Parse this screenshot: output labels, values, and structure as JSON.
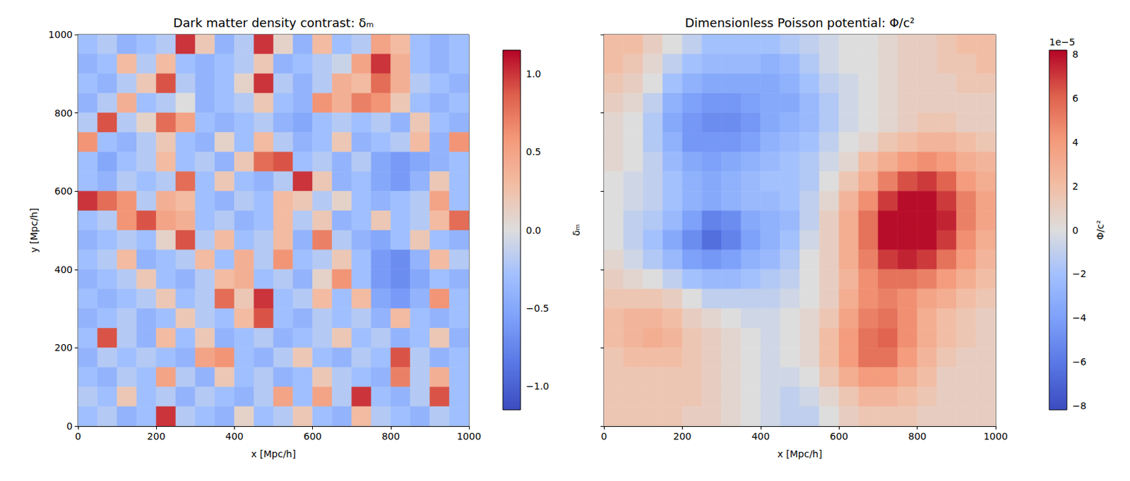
{
  "chart_data": [
    {
      "type": "heatmap",
      "title": "Dark matter density contrast: δₘ",
      "xlabel": "x [Mpc/h]",
      "ylabel": "y [Mpc/h]",
      "xlim": [
        0,
        1000
      ],
      "ylim": [
        0,
        1000
      ],
      "xticks": [
        0,
        200,
        400,
        600,
        800,
        1000
      ],
      "yticks": [
        0,
        200,
        400,
        600,
        800,
        1000
      ],
      "grid": false,
      "color": "coolwarm",
      "x": [
        25,
        75,
        125,
        175,
        225,
        275,
        325,
        375,
        425,
        475,
        525,
        575,
        625,
        675,
        725,
        775,
        825,
        875,
        925,
        975
      ],
      "y": [
        975,
        925,
        875,
        825,
        775,
        725,
        675,
        625,
        575,
        525,
        475,
        425,
        375,
        325,
        275,
        225,
        175,
        125,
        75,
        25
      ],
      "values": [
        [
          -0.3,
          -0.2,
          -0.4,
          -0.3,
          -0.2,
          1.0,
          0.2,
          -0.4,
          -0.2,
          1.0,
          0.1,
          -0.4,
          0.3,
          -0.3,
          -0.2,
          0.5,
          0.3,
          -0.3,
          -0.4,
          -0.3
        ],
        [
          -0.4,
          -0.3,
          0.3,
          -0.2,
          0.3,
          -0.3,
          -0.4,
          -0.3,
          -0.2,
          0.2,
          -0.4,
          -0.3,
          -0.2,
          -0.1,
          0.5,
          1.0,
          0.4,
          -0.3,
          -0.4,
          -0.3
        ],
        [
          -0.3,
          -0.4,
          -0.2,
          0.2,
          0.9,
          -0.2,
          -0.4,
          -0.3,
          0.1,
          1.0,
          -0.2,
          -0.4,
          -0.2,
          0.4,
          0.3,
          0.8,
          0.4,
          -0.2,
          -0.3,
          -0.4
        ],
        [
          -0.4,
          -0.2,
          0.4,
          -0.3,
          -0.2,
          0.0,
          -0.4,
          -0.3,
          -0.2,
          0.2,
          -0.3,
          -0.4,
          0.6,
          0.4,
          0.7,
          0.6,
          0.2,
          -0.3,
          -0.4,
          -0.3
        ],
        [
          -0.2,
          0.9,
          -0.2,
          0.1,
          0.8,
          0.5,
          -0.3,
          -0.4,
          -0.3,
          -0.2,
          -0.4,
          -0.5,
          -0.3,
          -0.2,
          -0.3,
          -0.2,
          -0.4,
          0.2,
          -0.3,
          -0.4
        ],
        [
          0.6,
          -0.3,
          -0.4,
          -0.2,
          0.2,
          -0.3,
          -0.4,
          0.1,
          -0.3,
          0.3,
          -0.2,
          -0.4,
          -0.3,
          0.2,
          -0.4,
          -0.3,
          -0.2,
          0.3,
          -0.4,
          0.6
        ],
        [
          -0.3,
          -0.5,
          -0.3,
          -0.2,
          0.3,
          -0.3,
          -0.2,
          -0.4,
          0.2,
          0.8,
          0.9,
          -0.3,
          -0.2,
          -0.4,
          -0.2,
          -0.5,
          -0.6,
          -0.5,
          -0.4,
          -0.3
        ],
        [
          -0.3,
          -0.4,
          -0.2,
          -0.3,
          -0.2,
          0.8,
          -0.3,
          0.2,
          -0.3,
          -0.4,
          -0.2,
          1.0,
          0.2,
          -0.4,
          -0.3,
          -0.5,
          -0.6,
          -0.4,
          0.2,
          -0.3
        ],
        [
          1.0,
          0.8,
          0.6,
          -0.2,
          0.4,
          0.3,
          -0.3,
          -0.4,
          -0.2,
          -0.3,
          0.3,
          0.2,
          -0.2,
          0.1,
          -0.3,
          -0.4,
          -0.3,
          -0.2,
          0.5,
          -0.3
        ],
        [
          -0.3,
          -0.2,
          0.6,
          0.9,
          0.5,
          0.4,
          -0.3,
          -0.2,
          -0.4,
          -0.3,
          0.3,
          -0.2,
          0.2,
          -0.4,
          -0.3,
          0.2,
          -0.3,
          -0.2,
          0.3,
          0.8
        ],
        [
          -0.4,
          -0.3,
          -0.2,
          -0.3,
          0.1,
          0.9,
          -0.2,
          0.3,
          -0.3,
          -0.2,
          0.3,
          -0.4,
          0.7,
          -0.2,
          -0.4,
          -0.5,
          -0.3,
          0.2,
          -0.3,
          -0.4
        ],
        [
          -0.3,
          -0.2,
          0.3,
          -0.4,
          -0.3,
          -0.2,
          0.3,
          -0.3,
          0.4,
          -0.2,
          0.6,
          -0.3,
          -0.2,
          0.2,
          -0.3,
          -0.6,
          -0.7,
          -0.4,
          0.3,
          -0.2
        ],
        [
          -0.4,
          -0.3,
          -0.2,
          0.2,
          -0.3,
          -0.4,
          -0.2,
          0.3,
          0.4,
          -0.3,
          -0.2,
          -0.4,
          0.1,
          0.6,
          -0.3,
          -0.6,
          -0.7,
          -0.5,
          -0.3,
          -0.4
        ],
        [
          -0.3,
          -0.4,
          -0.3,
          -0.2,
          0.2,
          -0.3,
          -0.2,
          0.8,
          0.2,
          1.0,
          -0.3,
          -0.2,
          0.3,
          -0.3,
          0.3,
          -0.5,
          -0.6,
          -0.4,
          0.6,
          -0.3
        ],
        [
          -0.4,
          -0.3,
          -0.2,
          -0.4,
          -0.3,
          0.2,
          -0.2,
          -0.3,
          0.3,
          0.9,
          -0.3,
          -0.4,
          -0.2,
          -0.3,
          -0.2,
          -0.4,
          0.3,
          -0.3,
          -0.4,
          -0.3
        ],
        [
          -0.3,
          0.9,
          -0.2,
          -0.4,
          0.3,
          -0.3,
          0.2,
          -0.4,
          -0.3,
          -0.2,
          -0.4,
          -0.3,
          -0.2,
          0.2,
          -0.3,
          -0.2,
          -0.4,
          -0.3,
          0.2,
          -0.4
        ],
        [
          -0.4,
          -0.2,
          -0.3,
          -0.2,
          -0.3,
          -0.4,
          0.5,
          0.6,
          -0.3,
          -0.4,
          -0.2,
          0.2,
          -0.3,
          -0.4,
          -0.2,
          -0.3,
          0.9,
          -0.2,
          -0.4,
          -0.3
        ],
        [
          -0.3,
          -0.4,
          -0.2,
          -0.3,
          0.5,
          -0.2,
          -0.4,
          0.2,
          -0.3,
          -0.2,
          -0.4,
          -0.3,
          0.2,
          -0.2,
          -0.3,
          -0.4,
          0.7,
          -0.2,
          0.4,
          -0.3
        ],
        [
          -0.2,
          -0.3,
          0.2,
          -0.3,
          -0.2,
          -0.4,
          -0.2,
          -0.3,
          -0.4,
          -0.2,
          0.5,
          -0.3,
          0.5,
          -0.2,
          1.0,
          -0.3,
          -0.4,
          -0.2,
          0.9,
          -0.3
        ],
        [
          -0.3,
          -0.2,
          -0.4,
          -0.3,
          1.0,
          -0.2,
          -0.3,
          -0.4,
          0.1,
          -0.3,
          -0.2,
          0.2,
          -0.3,
          -0.4,
          0.3,
          -0.2,
          -0.3,
          -0.4,
          -0.2,
          -0.3
        ]
      ],
      "colorbar": {
        "label": "δₘ",
        "range": [
          -1.15,
          1.15
        ],
        "ticks": [
          {
            "value": -1,
            "label": "−1.0"
          },
          {
            "value": -0.5,
            "label": "−0.5"
          },
          {
            "value": 0,
            "label": "0.0"
          },
          0.5,
          {
            "value": 1,
            "label": "1.0"
          }
        ]
      }
    },
    {
      "type": "heatmap",
      "title": "Dimensionless Poisson potential: Φ/c²",
      "xlabel": "x [Mpc/h]",
      "xlim": [
        0,
        1000
      ],
      "ylim": [
        0,
        1000
      ],
      "xticks": [
        0,
        200,
        400,
        600,
        800,
        1000
      ],
      "yticks": [
        0,
        200,
        400,
        600,
        800,
        1000
      ],
      "tick_labels": "x",
      "grid": false,
      "color": "coolwarm",
      "x": [
        25,
        75,
        125,
        175,
        225,
        275,
        325,
        375,
        425,
        475,
        525,
        575,
        625,
        675,
        725,
        775,
        825,
        875,
        925,
        975
      ],
      "y": [
        975,
        925,
        875,
        825,
        775,
        725,
        675,
        625,
        575,
        525,
        475,
        425,
        375,
        325,
        275,
        225,
        175,
        125,
        75,
        25
      ],
      "values": [
        [
          2,
          2,
          1,
          0,
          -1,
          -2,
          -2,
          -2,
          -2,
          -1.5,
          -1,
          -0.5,
          0,
          0,
          0.5,
          1,
          1,
          1.5,
          2,
          2
        ],
        [
          2,
          1.5,
          0.5,
          -1,
          -2,
          -2.5,
          -2.5,
          -2.5,
          -3,
          -2.5,
          -1.5,
          -0.5,
          0,
          0,
          0.5,
          1,
          1,
          1.5,
          1.5,
          2
        ],
        [
          1.5,
          1,
          0,
          -2,
          -3,
          -3.5,
          -3.5,
          -3.5,
          -3.5,
          -3,
          -2,
          -1,
          -0.5,
          0,
          0.5,
          1,
          1,
          1,
          1.5,
          1.5
        ],
        [
          1,
          0.5,
          -1,
          -3,
          -4,
          -4.5,
          -4.5,
          -4,
          -3.5,
          -3.5,
          -2.5,
          -1.5,
          -0.5,
          0,
          0.5,
          1,
          1,
          1,
          1,
          1
        ],
        [
          0.5,
          0,
          -1.5,
          -3.5,
          -4.5,
          -5,
          -5,
          -4.5,
          -3.5,
          -3,
          -2.5,
          -1.5,
          -0.5,
          0,
          0.5,
          1,
          1.5,
          1.5,
          1,
          1
        ],
        [
          0.5,
          0,
          -1.5,
          -3,
          -4.5,
          -4.5,
          -4.5,
          -4,
          -3,
          -2.5,
          -2,
          -1,
          0,
          0.5,
          1.5,
          2,
          2.5,
          2.5,
          2,
          1.5
        ],
        [
          0.5,
          0,
          -1,
          -2.5,
          -3.5,
          -4,
          -3.5,
          -3,
          -2.5,
          -2,
          -1.5,
          -0.5,
          0.5,
          2,
          3,
          4,
          4.5,
          4,
          3,
          2.5
        ],
        [
          0,
          -0.5,
          -1,
          -2,
          -3,
          -3.5,
          -3,
          -2.5,
          -2,
          -2,
          -1.5,
          0,
          1.5,
          3,
          5,
          6.5,
          7,
          6,
          4,
          3
        ],
        [
          0,
          -0.5,
          -1,
          -2,
          -3,
          -3.5,
          -3,
          -2.5,
          -2.5,
          -2,
          -1,
          0.5,
          2.5,
          4.5,
          7,
          8,
          8,
          7,
          5,
          3.5
        ],
        [
          0,
          -1,
          -1.5,
          -2.5,
          -4,
          -5.5,
          -5,
          -3.5,
          -3,
          -2.5,
          -1,
          1,
          3,
          5.5,
          8,
          8,
          8,
          7.5,
          5,
          3.5
        ],
        [
          0,
          -1,
          -2,
          -3.5,
          -5,
          -6.5,
          -5.5,
          -4,
          -3,
          -2,
          -0.5,
          1,
          3,
          5.5,
          8,
          8,
          8,
          7,
          4.5,
          3
        ],
        [
          0.5,
          -0.5,
          -1.5,
          -2.5,
          -4,
          -4.5,
          -4,
          -3,
          -2.5,
          -1.5,
          0,
          1,
          3,
          5,
          7,
          7.5,
          7,
          5.5,
          4,
          2.5
        ],
        [
          1,
          0.5,
          0,
          -1,
          -2,
          -2.5,
          -2.5,
          -2,
          -1.5,
          -1,
          0,
          1,
          2.5,
          4.5,
          5.5,
          5.5,
          5,
          4,
          3,
          2
        ],
        [
          1.5,
          1.5,
          1.5,
          1,
          0,
          -1,
          -1,
          -1,
          -1,
          -0.5,
          0,
          1,
          3,
          4.5,
          5,
          4.5,
          3.5,
          3,
          2,
          1.5
        ],
        [
          2,
          2.5,
          2.5,
          2,
          1,
          0.5,
          0,
          -0.5,
          -0.5,
          0,
          0.5,
          1.5,
          3.5,
          5,
          5.5,
          4.5,
          3,
          2,
          1.5,
          1
        ],
        [
          2,
          2.5,
          3,
          2.5,
          1.5,
          1,
          0.5,
          0,
          -0.5,
          0,
          0.5,
          2,
          4,
          5.5,
          6,
          4.5,
          3,
          2,
          1.5,
          1
        ],
        [
          1.5,
          2,
          2,
          2,
          1.5,
          1,
          0.5,
          0,
          -0.5,
          0,
          0.5,
          2,
          4,
          5.5,
          5.5,
          4,
          2.5,
          1.5,
          1,
          1
        ],
        [
          1.5,
          1.5,
          1.5,
          1.5,
          1.5,
          1,
          0.5,
          0,
          -0.5,
          -0.5,
          0,
          1.5,
          3,
          4,
          4,
          3,
          2,
          1,
          1,
          1
        ],
        [
          1.5,
          1.5,
          1.5,
          1.5,
          1.5,
          1,
          0.5,
          0,
          -0.5,
          -1,
          -0.5,
          0.5,
          1.5,
          2.5,
          2.5,
          2,
          1.5,
          1,
          1,
          1
        ],
        [
          1.5,
          1.5,
          1.5,
          1.5,
          1,
          1,
          0.5,
          0,
          -0.5,
          -1,
          -1,
          0,
          1,
          1.5,
          1.5,
          1.5,
          1,
          1,
          1,
          1
        ]
      ],
      "colorbar": {
        "label": "Φ/c²",
        "offset_label": "1e−5",
        "range": [
          -8.2,
          8.2
        ],
        "ticks": [
          {
            "value": -8,
            "label": "−8"
          },
          {
            "value": -6,
            "label": "−6"
          },
          {
            "value": -4,
            "label": "−4"
          },
          {
            "value": -2,
            "label": "−2"
          },
          0,
          2,
          4,
          6,
          8
        ]
      }
    }
  ]
}
